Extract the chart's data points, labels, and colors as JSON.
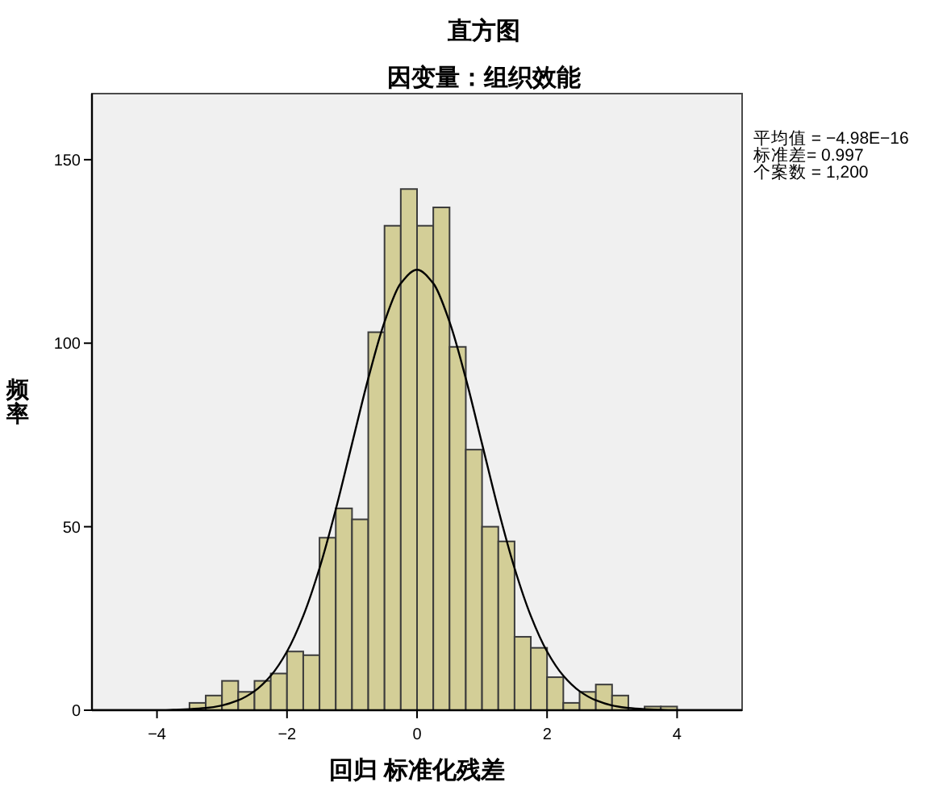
{
  "chart_data": {
    "type": "histogram",
    "title": "直方图",
    "subtitle": "因变量：组织效能",
    "xlabel": "回归 标准化残差",
    "ylabel": "频率",
    "annotations": [
      "平均值 = −4.98E−16",
      "标准差= 0.997",
      "个案数 = 1,200"
    ],
    "series": [
      {
        "color": "#d3ce97",
        "bins": [
          -3.5,
          -3.25,
          -3,
          -2.75,
          -2.5,
          -2.25,
          -2,
          -1.75,
          -1.5,
          -1.25,
          -1,
          -0.75,
          -0.5,
          -0.25,
          0,
          0.25,
          0.5,
          0.75,
          1,
          1.25,
          1.5,
          1.75,
          2,
          2.25,
          2.5,
          2.75,
          3,
          3.25,
          3.5,
          3.75,
          4
        ],
        "values": [
          2,
          4,
          8,
          5,
          8,
          10,
          16,
          15,
          47,
          55,
          52,
          103,
          132,
          142,
          132,
          137,
          99,
          71,
          50,
          46,
          20,
          17,
          9,
          2,
          5,
          7,
          4,
          0,
          1,
          1
        ]
      },
      {
        "type": "line",
        "color": "#000000",
        "x": [
          -5,
          -4.75,
          -4.5,
          -4.25,
          -4,
          -3.75,
          -3.5,
          -3.25,
          -3,
          -2.75,
          -2.5,
          -2.25,
          -2,
          -1.75,
          -1.5,
          -1.25,
          -1,
          -0.75,
          -0.5,
          -0.25,
          0,
          0.25,
          0.5,
          0.75,
          1,
          1.25,
          1.5,
          1.75,
          2,
          2.25,
          2.5,
          2.75,
          3,
          3.25,
          3.5,
          3.75,
          4,
          4.25,
          4.5,
          4.75,
          5
        ],
        "values": [
          0,
          0,
          0,
          0,
          0,
          0.1,
          0.3,
          0.6,
          1.3,
          2.7,
          5.2,
          9.4,
          16.0,
          25.7,
          38.7,
          54.7,
          72.6,
          90.4,
          105.8,
          116.3,
          120,
          116.3,
          105.8,
          90.4,
          72.6,
          54.7,
          38.7,
          25.7,
          16.0,
          9.4,
          5.2,
          2.7,
          1.3,
          0.6,
          0.3,
          0.1,
          0,
          0,
          0,
          0,
          0
        ]
      }
    ],
    "xlim": [
      -5,
      5
    ],
    "ylim": [
      0,
      168
    ],
    "xticks": [
      {
        "value": -4,
        "label": "−4"
      },
      {
        "value": -2,
        "label": "−2"
      },
      0,
      2,
      4
    ],
    "yticks": [
      0,
      50,
      100,
      150
    ]
  }
}
